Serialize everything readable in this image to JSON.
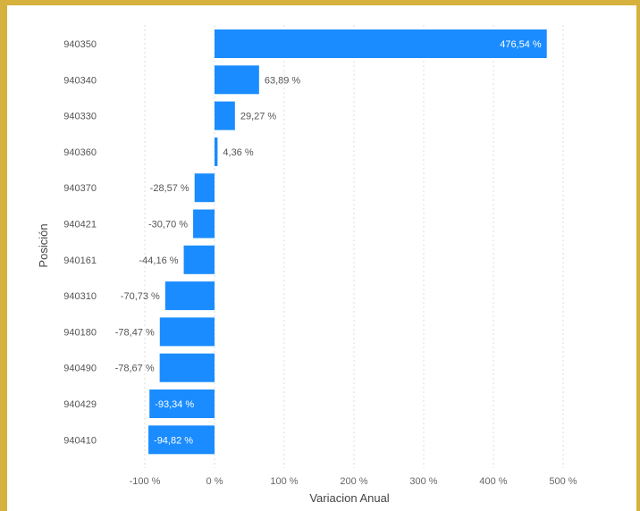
{
  "colors": {
    "frame": "#d6b13e",
    "bar": "#1a8cff",
    "grid": "#dddddd",
    "label_outside": "#555555",
    "label_inside": "#ffffff"
  },
  "chart_data": {
    "type": "bar",
    "orientation": "horizontal",
    "xlabel": "Variacion Anual",
    "ylabel": "Posición",
    "xlim": [
      -100,
      500
    ],
    "x_ticks": [
      -100,
      0,
      100,
      200,
      300,
      400,
      500
    ],
    "x_tick_labels": [
      "-100 %",
      "0 %",
      "100 %",
      "200 %",
      "300 %",
      "400 %",
      "500 %"
    ],
    "grid": "vertical dotted",
    "categories": [
      "940350",
      "940340",
      "940330",
      "940360",
      "940370",
      "940421",
      "940161",
      "940310",
      "940180",
      "940490",
      "940429",
      "940410"
    ],
    "values": [
      476.54,
      63.89,
      29.27,
      4.36,
      -28.57,
      -30.7,
      -44.16,
      -70.73,
      -78.47,
      -78.67,
      -93.34,
      -94.82
    ],
    "value_labels": [
      "476,54 %",
      "63,89 %",
      "29,27 %",
      "4,36 %",
      "-28,57 %",
      "-30,70 %",
      "-44,16 %",
      "-70,73 %",
      "-78,47 %",
      "-78,67 %",
      "-93,34 %",
      "-94,82 %"
    ],
    "inside_label": [
      true,
      false,
      false,
      false,
      false,
      false,
      false,
      false,
      false,
      false,
      true,
      true
    ]
  }
}
